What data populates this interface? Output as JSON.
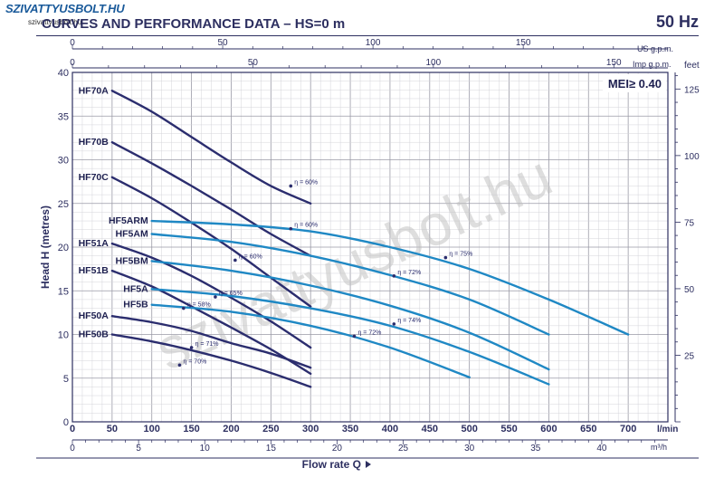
{
  "brand": {
    "logo_text": "SZIVATTYUSBOLT.HU",
    "site": "szivattyusbolt.hu"
  },
  "header": {
    "title": "CURVES AND PERFORMANCE DATA   –   HS=0 m",
    "frequency": "50 Hz"
  },
  "watermark": "szivattyusbolt.hu",
  "chart_data": {
    "type": "line",
    "title": "CURVES AND PERFORMANCE DATA   –   HS=0 m",
    "xlabel": "Flow rate Q",
    "x_unit": "l/min",
    "ylabel": "Head H (metres)",
    "y_right_unit": "feet",
    "xlim": [
      0,
      750
    ],
    "ylim": [
      0,
      40
    ],
    "grid": true,
    "mei_label": "MEI≥ 0.40",
    "x_ticks": [
      0,
      50,
      100,
      150,
      200,
      250,
      300,
      350,
      400,
      450,
      500,
      550,
      600,
      650,
      700
    ],
    "y_ticks": [
      0,
      5,
      10,
      15,
      20,
      25,
      30,
      35,
      40
    ],
    "feet_ticks": [
      25,
      50,
      75,
      100,
      125
    ],
    "m3h_unit": "m³/h",
    "m3h_ticks": [
      0,
      5,
      10,
      15,
      20,
      25,
      30,
      35,
      40
    ],
    "us_gpm_label": "US g.p.m.",
    "us_gpm_ticks": [
      0,
      50,
      100,
      150
    ],
    "imp_gpm_label": "Imp g.p.m.",
    "imp_gpm_ticks": [
      0,
      50,
      100,
      150
    ],
    "efficiency_labels": [
      {
        "text": "η = 60%",
        "x": 275,
        "y": 27
      },
      {
        "text": "η = 60%",
        "x": 275,
        "y": 22.1
      },
      {
        "text": "η = 60%",
        "x": 205,
        "y": 18.5
      },
      {
        "text": "η = 65%",
        "x": 180,
        "y": 14.3
      },
      {
        "text": "η = 58%",
        "x": 140,
        "y": 13.0
      },
      {
        "text": "η = 71%",
        "x": 150,
        "y": 8.5
      },
      {
        "text": "η = 70%",
        "x": 135,
        "y": 6.5
      },
      {
        "text": "η = 75%",
        "x": 470,
        "y": 18.8
      },
      {
        "text": "η = 72%",
        "x": 405,
        "y": 16.7
      },
      {
        "text": "η = 74%",
        "x": 405,
        "y": 11.2
      },
      {
        "text": "η = 72%",
        "x": 355,
        "y": 9.8
      }
    ],
    "series": [
      {
        "name": "HF70A",
        "color": "#2b2d6e",
        "x": [
          50,
          100,
          150,
          200,
          250,
          300
        ],
        "y": [
          37.9,
          35.5,
          32.6,
          29.7,
          27.0,
          25.0
        ]
      },
      {
        "name": "HF70B",
        "color": "#2b2d6e",
        "x": [
          50,
          100,
          150,
          200,
          250,
          300
        ],
        "y": [
          32.0,
          29.6,
          27.0,
          24.3,
          21.5,
          19.0
        ]
      },
      {
        "name": "HF70C",
        "color": "#2b2d6e",
        "x": [
          50,
          100,
          150,
          200,
          250,
          300
        ],
        "y": [
          28.0,
          25.6,
          22.8,
          19.8,
          16.5,
          13.2
        ]
      },
      {
        "name": "HF51A",
        "color": "#2b2d6e",
        "x": [
          50,
          100,
          150,
          200,
          250,
          300
        ],
        "y": [
          20.4,
          18.8,
          16.7,
          14.2,
          11.5,
          8.5
        ]
      },
      {
        "name": "HF51B",
        "color": "#2b2d6e",
        "x": [
          50,
          100,
          150,
          200,
          250,
          300
        ],
        "y": [
          17.3,
          15.5,
          13.2,
          10.8,
          8.3,
          5.5
        ]
      },
      {
        "name": "HF50A",
        "color": "#2b2d6e",
        "x": [
          50,
          100,
          150,
          200,
          250,
          300
        ],
        "y": [
          12.1,
          11.4,
          10.4,
          9.0,
          7.8,
          6.2
        ]
      },
      {
        "name": "HF50B",
        "color": "#2b2d6e",
        "x": [
          50,
          100,
          150,
          200,
          250,
          300
        ],
        "y": [
          10.0,
          9.2,
          8.2,
          7.0,
          5.6,
          4.0
        ]
      },
      {
        "name": "HF5ARM",
        "color": "#1f88c4",
        "x": [
          100,
          200,
          300,
          400,
          500,
          600,
          700
        ],
        "y": [
          23.0,
          22.6,
          21.8,
          20.0,
          17.5,
          14.0,
          10.0
        ]
      },
      {
        "name": "HF5AM",
        "color": "#1f88c4",
        "x": [
          100,
          200,
          300,
          400,
          500,
          600
        ],
        "y": [
          21.5,
          20.6,
          19.0,
          16.8,
          14.0,
          10.0
        ]
      },
      {
        "name": "HF5BM",
        "color": "#1f88c4",
        "x": [
          100,
          200,
          300,
          400,
          500,
          600
        ],
        "y": [
          18.4,
          17.3,
          15.6,
          13.3,
          10.2,
          6.0
        ]
      },
      {
        "name": "HF5A",
        "color": "#1f88c4",
        "x": [
          100,
          200,
          300,
          400,
          500,
          600
        ],
        "y": [
          15.2,
          14.4,
          13.0,
          11.0,
          8.0,
          4.3
        ]
      },
      {
        "name": "HF5B",
        "color": "#1f88c4",
        "x": [
          100,
          200,
          300,
          400,
          500
        ],
        "y": [
          13.4,
          12.6,
          11.0,
          8.5,
          5.1
        ]
      }
    ]
  }
}
